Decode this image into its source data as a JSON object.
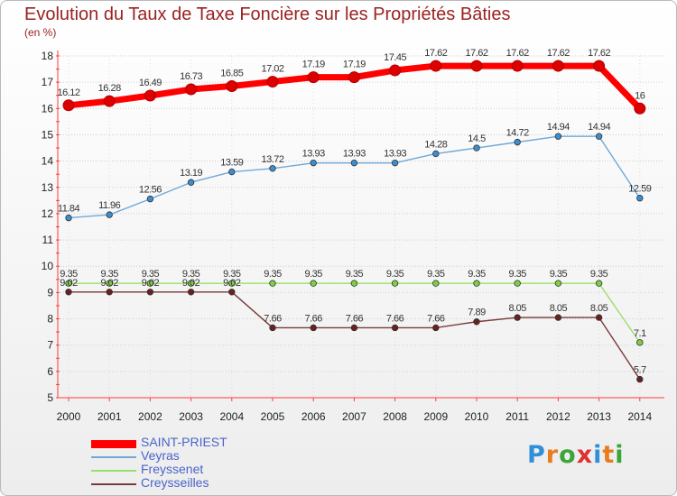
{
  "page": {
    "title": "Evolution du Taux de Taxe Foncière sur les Propriétés Bâties",
    "unit": "(en %)"
  },
  "chart_data": {
    "type": "line",
    "title": "Evolution du Taux de Taxe Foncière sur les Propriétés Bâties",
    "ylabel": "(en %)",
    "xlabel": "",
    "categories": [
      "2000",
      "2001",
      "2002",
      "2003",
      "2004",
      "2005",
      "2006",
      "2007",
      "2008",
      "2009",
      "2010",
      "2011",
      "2012",
      "2013",
      "2014"
    ],
    "ylim": [
      5,
      18
    ],
    "yticks": [
      5,
      6,
      7,
      8,
      9,
      10,
      11,
      12,
      13,
      14,
      15,
      16,
      17,
      18
    ],
    "legend_position": "bottom-left",
    "series": [
      {
        "name": "SAINT-PRIEST",
        "color": "#ff0000",
        "marker_color": "#dd0000",
        "emphasis": true,
        "values": [
          16.12,
          16.28,
          16.49,
          16.73,
          16.85,
          17.02,
          17.19,
          17.19,
          17.45,
          17.62,
          17.62,
          17.62,
          17.62,
          17.62,
          16
        ],
        "labels": [
          "16.12",
          "16.28",
          "16.49",
          "16.73",
          "16.85",
          "17.02",
          "17.19",
          "17.19",
          "17.45",
          "17.62",
          "17.62",
          "17.62",
          "17.62",
          "17.62",
          "16"
        ]
      },
      {
        "name": "Veyras",
        "color": "#6fa8d8",
        "marker_color": "#3b8fd0",
        "values": [
          11.84,
          11.96,
          12.56,
          13.19,
          13.59,
          13.72,
          13.93,
          13.93,
          13.93,
          14.28,
          14.5,
          14.72,
          14.94,
          14.94,
          12.59
        ],
        "labels": [
          "11.84",
          "11.96",
          "12.56",
          "13.19",
          "13.59",
          "13.72",
          "13.93",
          "13.93",
          "13.93",
          "14.28",
          "14.5",
          "14.72",
          "14.94",
          "14.94",
          "12.59"
        ]
      },
      {
        "name": "Freyssenet",
        "color": "#9ae06a",
        "marker_color": "#7cd046",
        "values": [
          9.35,
          9.35,
          9.35,
          9.35,
          9.35,
          9.35,
          9.35,
          9.35,
          9.35,
          9.35,
          9.35,
          9.35,
          9.35,
          9.35,
          7.1
        ],
        "labels": [
          "9.35",
          "9.35",
          "9.35",
          "9.35",
          "9.35",
          "9.35",
          "9.35",
          "9.35",
          "9.35",
          "9.35",
          "9.35",
          "9.35",
          "9.35",
          "9.35",
          "7.1"
        ]
      },
      {
        "name": "Creysseilles",
        "color": "#7a3a3a",
        "marker_color": "#6b2020",
        "values": [
          9.02,
          9.02,
          9.02,
          9.02,
          9.02,
          7.66,
          7.66,
          7.66,
          7.66,
          7.66,
          7.89,
          8.05,
          8.05,
          8.05,
          5.7
        ],
        "labels": [
          "9.02",
          "9.02",
          "9.02",
          "9.02",
          "9.02",
          "7.66",
          "7.66",
          "7.66",
          "7.66",
          "7.66",
          "7.89",
          "8.05",
          "8.05",
          "8.05",
          "5.7"
        ]
      }
    ]
  },
  "legend": {
    "items": [
      {
        "label": "SAINT-PRIEST",
        "color": "#ff0000"
      },
      {
        "label": "Veyras",
        "color": "#6fa8d8"
      },
      {
        "label": "Freyssenet",
        "color": "#9ae06a"
      },
      {
        "label": "Creysseilles",
        "color": "#7a3a3a"
      }
    ]
  },
  "logo": {
    "letters": [
      "P",
      "r",
      "o",
      "x",
      "i",
      "t",
      "i"
    ],
    "colors": [
      "#2f8fd8",
      "#e87c1e",
      "#3aa53a",
      "#e03030",
      "#2f8fd8",
      "#e87c1e",
      "#3aa53a"
    ]
  }
}
